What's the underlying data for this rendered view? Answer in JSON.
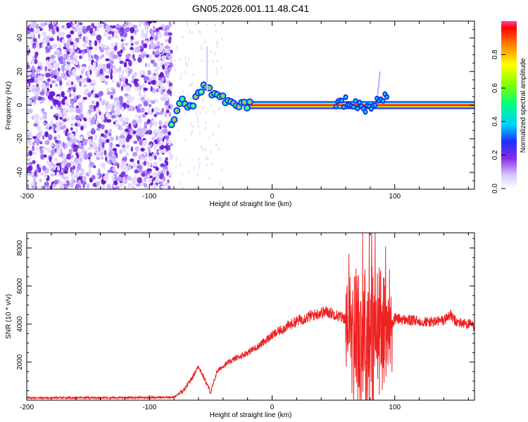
{
  "figure_title": "GN05.2026.001.11.48.C41",
  "chart_data": [
    {
      "type": "heatmap",
      "title": "GN05.2026.001.11.48.C41",
      "xlabel": "Height of straight line (km)",
      "ylabel": "Frequency (Hz)",
      "xlim": [
        -200,
        165
      ],
      "ylim": [
        -50,
        50
      ],
      "x_ticks": [
        -200,
        -100,
        0,
        100
      ],
      "y_ticks": [
        -40,
        -20,
        0,
        20,
        40
      ],
      "colorbar": {
        "label": "Normalized spectral amplitude",
        "range": [
          0,
          1
        ],
        "ticks": [
          0.0,
          0.2,
          0.4,
          0.6,
          0.8
        ]
      },
      "description_regions": [
        {
          "x_range": [
            -200,
            -82
          ],
          "kind": "broadband noise",
          "amplitude": 0.1
        },
        {
          "x_range": [
            -82,
            165
          ],
          "kind": "signal line near 0 Hz",
          "amplitude_peak": 1.0
        }
      ],
      "signal_track": [
        {
          "x": -82,
          "f": -12
        },
        {
          "x": -75,
          "f": 2
        },
        {
          "x": -65,
          "f": 0
        },
        {
          "x": -55,
          "f": 11
        },
        {
          "x": -45,
          "f": 5
        },
        {
          "x": -35,
          "f": 2
        },
        {
          "x": -20,
          "f": 0
        },
        {
          "x": 0,
          "f": 0
        },
        {
          "x": 50,
          "f": 0
        },
        {
          "x": 60,
          "f": 2
        },
        {
          "x": 80,
          "f": -2
        },
        {
          "x": 88,
          "f": 6
        },
        {
          "x": 100,
          "f": 0
        },
        {
          "x": 165,
          "f": 0
        }
      ]
    },
    {
      "type": "line",
      "xlabel": "Height of straight line (km)",
      "ylabel": "SNR (10 * v/v)",
      "xlim": [
        -200,
        165
      ],
      "ylim": [
        0,
        8800
      ],
      "x_ticks": [
        -200,
        -100,
        0,
        100
      ],
      "y_ticks": [
        2000,
        4000,
        6000,
        8000
      ],
      "color": "#ee2222",
      "series": [
        {
          "name": "SNR",
          "x": [
            -200,
            -150,
            -100,
            -80,
            -72,
            -65,
            -60,
            -55,
            -50,
            -45,
            -40,
            -30,
            -20,
            -10,
            0,
            10,
            20,
            30,
            40,
            45,
            50,
            55,
            60,
            65,
            70,
            75,
            80,
            85,
            88,
            90,
            92,
            95,
            100,
            110,
            120,
            130,
            140,
            145,
            150,
            160,
            165
          ],
          "values": [
            120,
            130,
            140,
            160,
            500,
            1200,
            1800,
            1100,
            400,
            1500,
            1800,
            2200,
            2500,
            2900,
            3400,
            3800,
            4150,
            4400,
            4600,
            4650,
            4550,
            4400,
            4300,
            4500,
            3600,
            3400,
            3600,
            3300,
            3800,
            3500,
            3900,
            3600,
            4300,
            4200,
            4150,
            4100,
            4200,
            4500,
            4100,
            4000,
            3900
          ],
          "spike_envelope_x_range": [
            60,
            98
          ],
          "spike_max": 8800
        }
      ]
    }
  ]
}
